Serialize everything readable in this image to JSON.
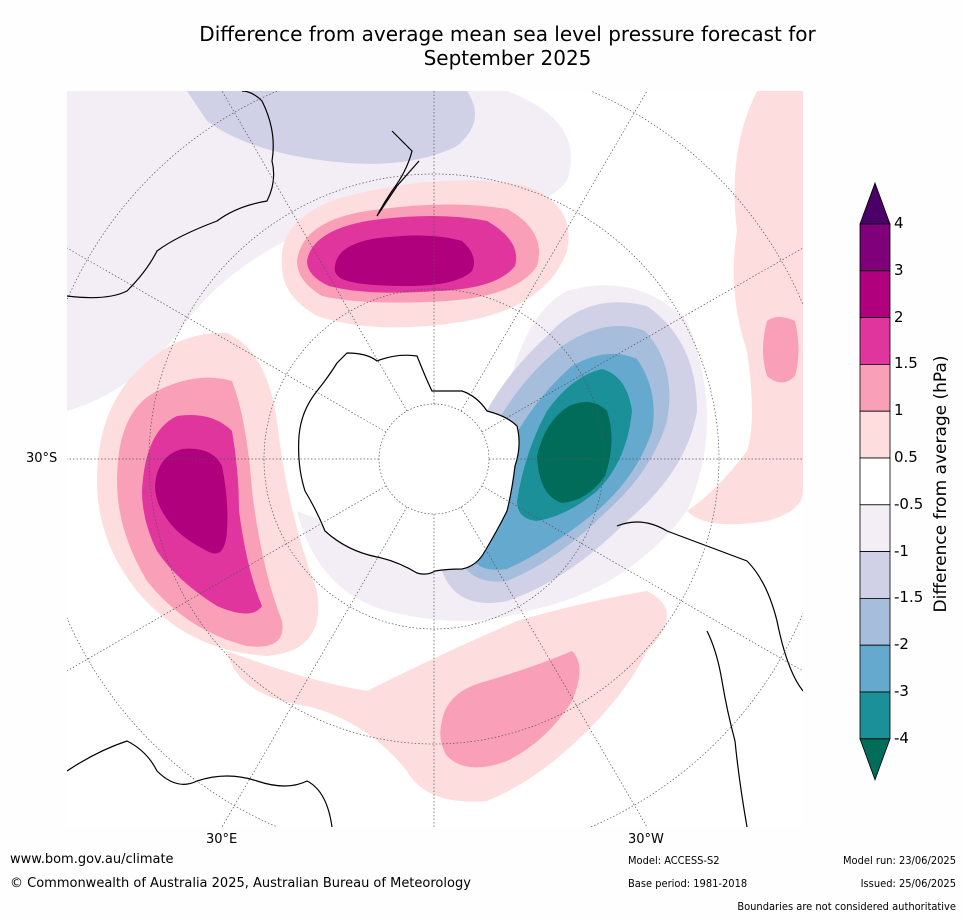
{
  "title_line1": "Difference from average mean sea level pressure forecast for",
  "title_line2": "September 2025",
  "labels": {
    "lat_30s": "30°S",
    "lon_30e": "30°E",
    "lon_30w": "30°W"
  },
  "colorbar": {
    "label": "Difference from average (hPa)",
    "ticks": [
      "4",
      "3",
      "2",
      "1.5",
      "1",
      "0.5",
      "-0.5",
      "-1",
      "-1.5",
      "-2",
      "-3",
      "-4"
    ],
    "colors": [
      "#4a0066",
      "#80007c",
      "#b0007e",
      "#df359d",
      "#f99fb8",
      "#fddddd",
      "#ffffff",
      "#f3eef5",
      "#d0d1e6",
      "#a6bddb",
      "#66a9cf",
      "#1c9099",
      "#016c59"
    ]
  },
  "footer": {
    "website": "www.bom.gov.au/climate",
    "copyright": "© Commonwealth of Australia 2025, Australian Bureau of Meteorology",
    "model": "Model: ACCESS-S2",
    "base_period": "Base period: 1981-2018",
    "model_run": "Model run: 23/06/2025",
    "issued": "Issued: 25/06/2025",
    "disclaimer": "Boundaries are not considered authoritative"
  }
}
